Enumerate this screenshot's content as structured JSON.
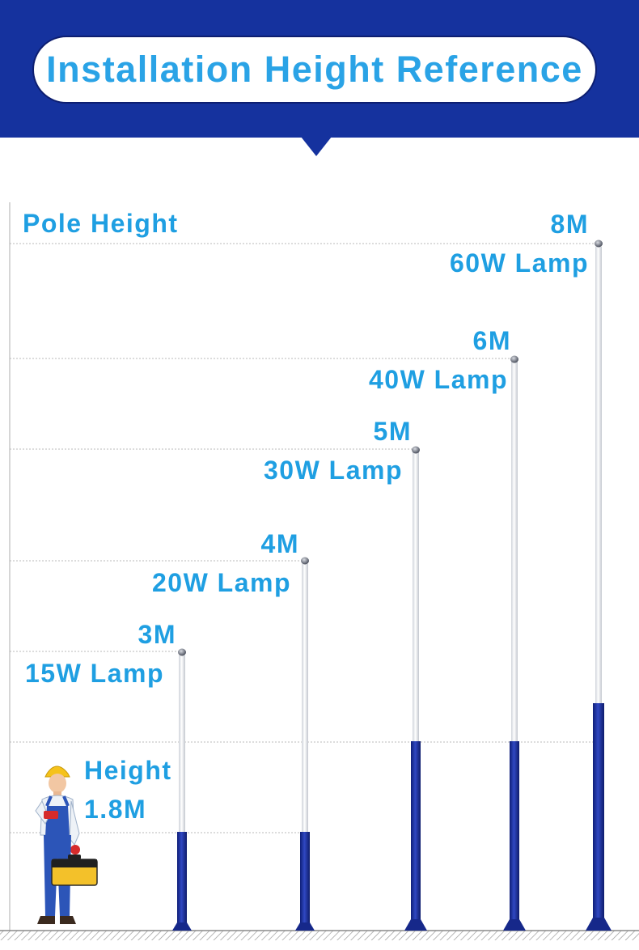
{
  "header": {
    "title": "Installation Height Reference"
  },
  "axis": {
    "label": "Pole Height"
  },
  "person": {
    "height_label": "Height",
    "height_value": "1.8M"
  },
  "poles": [
    {
      "height_label": "3M",
      "lamp_label": "15W Lamp"
    },
    {
      "height_label": "4M",
      "lamp_label": "20W Lamp"
    },
    {
      "height_label": "5M",
      "lamp_label": "30W Lamp"
    },
    {
      "height_label": "6M",
      "lamp_label": "40W Lamp"
    },
    {
      "height_label": "8M",
      "lamp_label": "60W Lamp"
    }
  ],
  "colors": {
    "banner": "#15329e",
    "label_text": "#1f9fe2",
    "pole_base": "#1c2f9a",
    "pole_white": "#f4f4f6"
  }
}
